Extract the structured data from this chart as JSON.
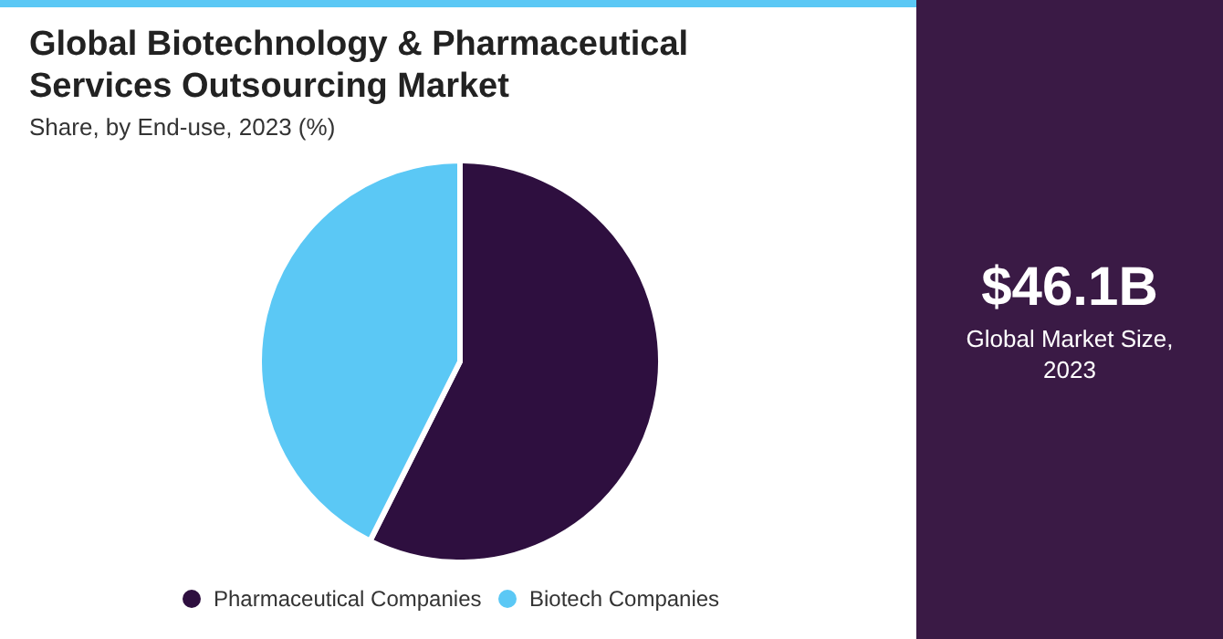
{
  "chart_data": {
    "type": "pie",
    "title": "Global Biotechnology & Pharmaceutical Services Outsourcing Market",
    "subtitle": "Share, by End-use, 2023 (%)",
    "categories": [
      "Pharmaceutical Companies",
      "Biotech Companies"
    ],
    "values": [
      57.4,
      42.6
    ],
    "colors": [
      "#2e0f3f",
      "#5bc8f5"
    ],
    "legend": "bottom",
    "annotations": [
      "$46.1B",
      "Global Market Size, 2023"
    ]
  }
}
